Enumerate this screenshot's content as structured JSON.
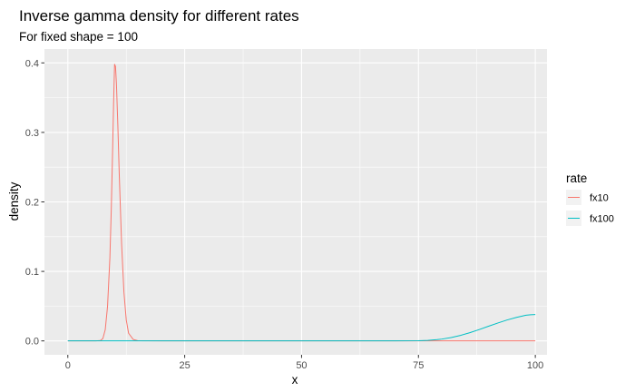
{
  "chart_data": {
    "type": "line",
    "title": "Inverse gamma density for different rates",
    "subtitle": "For fixed shape = 100",
    "xlabel": "x",
    "ylabel": "density",
    "xlim": [
      -5,
      102.5
    ],
    "ylim": [
      -0.02,
      0.42
    ],
    "x_ticks": [
      0,
      25,
      50,
      75,
      100
    ],
    "y_ticks": [
      0.0,
      0.1,
      0.2,
      0.3,
      0.4
    ],
    "x_tick_labels": [
      "0",
      "25",
      "50",
      "75",
      "100"
    ],
    "y_tick_labels": [
      "0.0",
      "0.1",
      "0.2",
      "0.3",
      "0.4"
    ],
    "grid": true,
    "legend": {
      "title": "rate",
      "position": "right"
    },
    "series": [
      {
        "name": "fx10",
        "color": "#F8766D",
        "x": [
          0,
          6,
          7,
          7.5,
          8,
          8.5,
          9,
          9.3,
          9.6,
          9.8,
          10,
          10.2,
          10.4,
          10.7,
          11,
          11.5,
          12,
          12.5,
          13,
          14,
          15,
          20,
          50,
          100
        ],
        "y": [
          0,
          0,
          0.0005,
          0.0035,
          0.016,
          0.05,
          0.12,
          0.19,
          0.28,
          0.345,
          0.398,
          0.395,
          0.37,
          0.31,
          0.24,
          0.14,
          0.07,
          0.03,
          0.011,
          0.002,
          0.0003,
          0,
          0,
          0
        ]
      },
      {
        "name": "fx100",
        "color": "#00BFC4",
        "x": [
          0,
          70,
          75,
          77,
          79,
          80,
          82,
          84,
          86,
          88,
          90,
          92,
          94,
          96,
          98,
          99,
          100
        ],
        "y": [
          0,
          0,
          0.0003,
          0.0008,
          0.0018,
          0.0026,
          0.0048,
          0.0079,
          0.0118,
          0.0163,
          0.0211,
          0.0258,
          0.0302,
          0.0339,
          0.037,
          0.0376,
          0.038
        ]
      }
    ]
  }
}
